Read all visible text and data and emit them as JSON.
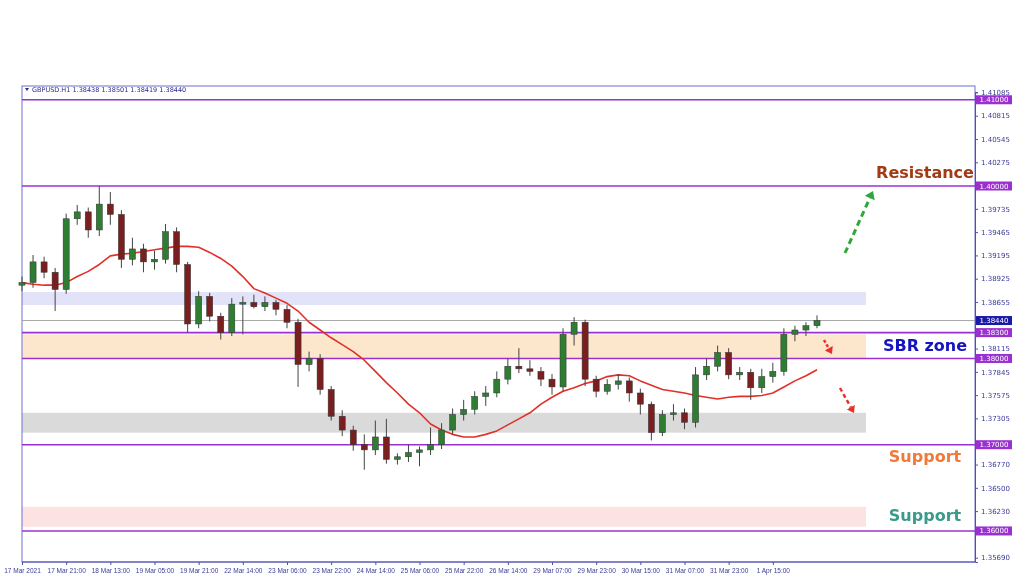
{
  "chart_data": {
    "type": "candlestick",
    "title": "GBPUSD.H1  1.38438 1.38501 1.38419 1.38440",
    "categories": [
      "17 Mar 2021",
      null,
      null,
      null,
      "17 Mar 21:00",
      null,
      null,
      null,
      "18 Mar 13:00",
      null,
      null,
      null,
      "19 Mar 05:00",
      null,
      null,
      null,
      "19 Mar 21:00",
      null,
      null,
      null,
      "22 Mar 14:00",
      null,
      null,
      null,
      "23 Mar 06:00",
      null,
      null,
      null,
      "23 Mar 22:00",
      null,
      null,
      null,
      "24 Mar 14:00",
      null,
      null,
      null,
      "25 Mar 06:00",
      null,
      null,
      null,
      "25 Mar 22:00",
      null,
      null,
      null,
      "26 Mar 14:00",
      null,
      null,
      null,
      "29 Mar 07:00",
      null,
      null,
      null,
      "29 Mar 23:00",
      null,
      null,
      null,
      "30 Mar 15:00",
      null,
      null,
      null,
      "31 Mar 07:00",
      null,
      null,
      null,
      "31 Mar 23:00",
      null,
      null,
      null,
      "1 Apr 15:00",
      null,
      null,
      null,
      null
    ],
    "ohlc": [
      [
        1.3885,
        1.3895,
        1.3878,
        1.3888
      ],
      [
        1.3888,
        1.392,
        1.3882,
        1.3912
      ],
      [
        1.3912,
        1.3918,
        1.3893,
        1.39
      ],
      [
        1.39,
        1.3905,
        1.3855,
        1.388
      ],
      [
        1.388,
        1.3968,
        1.3875,
        1.3962
      ],
      [
        1.3962,
        1.3978,
        1.3955,
        1.397
      ],
      [
        1.397,
        1.3975,
        1.394,
        1.3949
      ],
      [
        1.3949,
        1.4,
        1.3942,
        1.3979
      ],
      [
        1.3979,
        1.3993,
        1.3955,
        1.3967
      ],
      [
        1.3967,
        1.3972,
        1.3905,
        1.3915
      ],
      [
        1.3915,
        1.394,
        1.3908,
        1.3927
      ],
      [
        1.3927,
        1.3933,
        1.39,
        1.3912
      ],
      [
        1.3912,
        1.3925,
        1.3903,
        1.3915
      ],
      [
        1.3915,
        1.3956,
        1.391,
        1.3947
      ],
      [
        1.3947,
        1.3952,
        1.39,
        1.3909
      ],
      [
        1.3909,
        1.3912,
        1.383,
        1.384
      ],
      [
        1.384,
        1.3878,
        1.3835,
        1.3872
      ],
      [
        1.3872,
        1.3876,
        1.3843,
        1.3849
      ],
      [
        1.3849,
        1.3853,
        1.3822,
        1.383
      ],
      [
        1.383,
        1.387,
        1.3826,
        1.3863
      ],
      [
        1.3863,
        1.3872,
        1.3828,
        1.3865
      ],
      [
        1.3865,
        1.3874,
        1.3858,
        1.386
      ],
      [
        1.386,
        1.3872,
        1.3855,
        1.3865
      ],
      [
        1.3865,
        1.3868,
        1.385,
        1.3857
      ],
      [
        1.3857,
        1.3862,
        1.3835,
        1.3842
      ],
      [
        1.3842,
        1.3846,
        1.3767,
        1.3793
      ],
      [
        1.3793,
        1.3808,
        1.3785,
        1.38
      ],
      [
        1.38,
        1.3805,
        1.3758,
        1.3764
      ],
      [
        1.3764,
        1.3768,
        1.3728,
        1.3733
      ],
      [
        1.3733,
        1.374,
        1.371,
        1.3717
      ],
      [
        1.3717,
        1.3722,
        1.3693,
        1.37
      ],
      [
        1.37,
        1.3712,
        1.3671,
        1.3694
      ],
      [
        1.3694,
        1.3728,
        1.3688,
        1.3709
      ],
      [
        1.3709,
        1.373,
        1.3678,
        1.3683
      ],
      [
        1.3683,
        1.369,
        1.3677,
        1.3686
      ],
      [
        1.3686,
        1.37,
        1.368,
        1.3691
      ],
      [
        1.3691,
        1.3698,
        1.3675,
        1.3694
      ],
      [
        1.3694,
        1.372,
        1.3688,
        1.37
      ],
      [
        1.37,
        1.3725,
        1.3695,
        1.3717
      ],
      [
        1.3717,
        1.3742,
        1.3712,
        1.3735
      ],
      [
        1.3735,
        1.3752,
        1.3728,
        1.3741
      ],
      [
        1.3741,
        1.3762,
        1.3735,
        1.3756
      ],
      [
        1.3756,
        1.3768,
        1.3745,
        1.376
      ],
      [
        1.376,
        1.3785,
        1.3755,
        1.3776
      ],
      [
        1.3776,
        1.38,
        1.377,
        1.3791
      ],
      [
        1.3791,
        1.3812,
        1.3783,
        1.3788
      ],
      [
        1.3788,
        1.3798,
        1.378,
        1.3785
      ],
      [
        1.3785,
        1.379,
        1.3768,
        1.3776
      ],
      [
        1.3776,
        1.3782,
        1.3758,
        1.3767
      ],
      [
        1.3767,
        1.3835,
        1.3762,
        1.3828
      ],
      [
        1.3828,
        1.3848,
        1.3815,
        1.3842
      ],
      [
        1.3842,
        1.3845,
        1.3768,
        1.3776
      ],
      [
        1.3776,
        1.378,
        1.3755,
        1.3762
      ],
      [
        1.3762,
        1.3776,
        1.3758,
        1.377
      ],
      [
        1.377,
        1.3782,
        1.3764,
        1.3774
      ],
      [
        1.3774,
        1.3778,
        1.375,
        1.376
      ],
      [
        1.376,
        1.3765,
        1.3735,
        1.3747
      ],
      [
        1.3747,
        1.375,
        1.3705,
        1.3714
      ],
      [
        1.3714,
        1.374,
        1.371,
        1.3735
      ],
      [
        1.3735,
        1.3747,
        1.3728,
        1.3737
      ],
      [
        1.3737,
        1.3742,
        1.3718,
        1.3726
      ],
      [
        1.3726,
        1.379,
        1.372,
        1.3781
      ],
      [
        1.3781,
        1.38,
        1.3775,
        1.3791
      ],
      [
        1.3791,
        1.3815,
        1.3785,
        1.3807
      ],
      [
        1.3807,
        1.3812,
        1.3776,
        1.3781
      ],
      [
        1.3781,
        1.379,
        1.3775,
        1.3784
      ],
      [
        1.3784,
        1.3788,
        1.3752,
        1.3766
      ],
      [
        1.3766,
        1.3788,
        1.376,
        1.3779
      ],
      [
        1.3779,
        1.3795,
        1.3772,
        1.3785
      ],
      [
        1.3785,
        1.3835,
        1.378,
        1.3828
      ],
      [
        1.3828,
        1.3838,
        1.382,
        1.3833
      ],
      [
        1.3833,
        1.3842,
        1.3826,
        1.3838
      ],
      [
        1.3838,
        1.385,
        1.3835,
        1.3844
      ]
    ],
    "series": [
      {
        "type": "line",
        "color": "#e03028",
        "values": [
          1.3888,
          1.3886,
          1.3885,
          1.3885,
          1.3888,
          1.3895,
          1.3901,
          1.3909,
          1.3919,
          1.3921,
          1.3922,
          1.3924,
          1.3926,
          1.3928,
          1.393,
          1.393,
          1.3929,
          1.3923,
          1.3916,
          1.3907,
          1.3895,
          1.3881,
          1.3876,
          1.387,
          1.3864,
          1.3855,
          1.3842,
          1.3833,
          1.3824,
          1.3816,
          1.3808,
          1.3798,
          1.3785,
          1.3772,
          1.376,
          1.3747,
          1.3737,
          1.3724,
          1.3717,
          1.3712,
          1.3709,
          1.3709,
          1.3712,
          1.3716,
          1.3723,
          1.373,
          1.3737,
          1.3747,
          1.3755,
          1.3762,
          1.3766,
          1.3771,
          1.3774,
          1.3779,
          1.3781,
          1.378,
          1.3774,
          1.3769,
          1.3764,
          1.3762,
          1.376,
          1.3757,
          1.3755,
          1.3753,
          1.3755,
          1.3756,
          1.3756,
          1.3757,
          1.376,
          1.3767,
          1.3774,
          1.378,
          1.3787
        ]
      }
    ],
    "ylim": [
      1.3564,
      1.4109
    ],
    "yticks": [
      1.41085,
      1.40815,
      1.40545,
      1.40275,
      1.39735,
      1.39465,
      1.39195,
      1.38925,
      1.38655,
      1.38115,
      1.37845,
      1.37575,
      1.37305,
      {
        "value": 1.3677,
        "label": "1.36770"
      },
      {
        "value": 1.365,
        "label": "1.36500"
      },
      {
        "value": 1.3623,
        "label": "1.36230"
      },
      {
        "value": 1.3569,
        "label": "1.35690"
      }
    ],
    "ref_lines": [
      {
        "axis": "y",
        "value": 1.41,
        "label": "1.41000",
        "color": "#9b30d0"
      },
      {
        "axis": "y",
        "value": 1.4,
        "label": "1.40000",
        "color": "#9b30d0"
      },
      {
        "axis": "y",
        "value": 1.3844,
        "label": "1.38440",
        "color": "#a8a8a8"
      },
      {
        "axis": "y",
        "value": 1.383,
        "label": "1.38300",
        "color": "#9b30d0"
      },
      {
        "axis": "y",
        "value": 1.38,
        "label": "1.38000",
        "color": "#9b30d0"
      },
      {
        "axis": "y",
        "value": 1.37,
        "label": "1.37000",
        "color": "#9b30d0"
      },
      {
        "axis": "y",
        "value": 1.36,
        "label": "1.36000",
        "color": "#9b30d0"
      }
    ],
    "bands": [
      {
        "axis": "y",
        "from": 1.3862,
        "to": 1.3877,
        "color": "#e2e2f8"
      },
      {
        "axis": "y",
        "from": 1.38,
        "to": 1.3828,
        "color": "#fde7cc"
      },
      {
        "axis": "y",
        "from": 1.3714,
        "to": 1.3737,
        "color": "#dadada"
      },
      {
        "axis": "y",
        "from": 1.3605,
        "to": 1.3628,
        "color": "#fde2e2"
      }
    ],
    "annotations": [
      "Resistance",
      "SBR zone",
      "Support",
      "Support"
    ],
    "tick_labels": true,
    "grid": false
  }
}
